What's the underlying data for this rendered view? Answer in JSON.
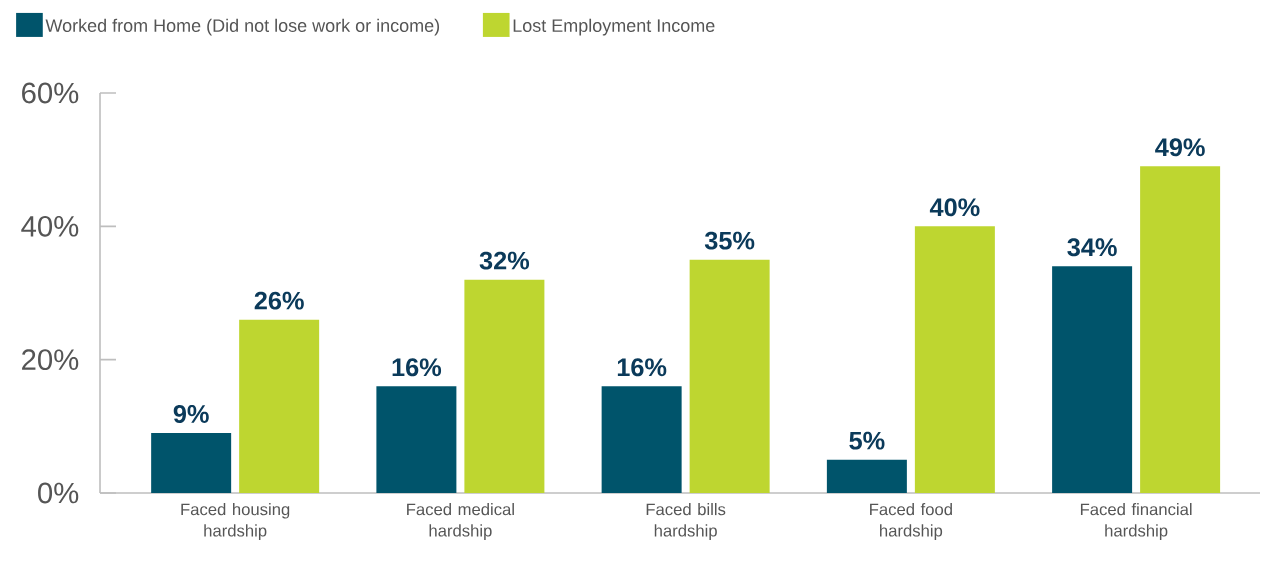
{
  "chart_data": {
    "type": "bar",
    "categories": [
      "Faced housing hardship",
      "Faced medical hardship",
      "Faced bills hardship",
      "Faced food hardship",
      "Faced financial hardship"
    ],
    "series": [
      {
        "name": "Worked from Home (Did not lose work or income)",
        "color": "#00546b",
        "values": [
          9,
          16,
          16,
          5,
          34
        ],
        "value_labels": [
          "9%",
          "16%",
          "16%",
          "5%",
          "34%"
        ]
      },
      {
        "name": "Lost Employment Income",
        "color": "#bed630",
        "values": [
          26,
          32,
          35,
          40,
          49
        ],
        "value_labels": [
          "26%",
          "32%",
          "35%",
          "40%",
          "49%"
        ]
      }
    ],
    "ylim": [
      0,
      60
    ],
    "yticks": [
      {
        "value": 0,
        "label": "0%"
      },
      {
        "value": 20,
        "label": "20%"
      },
      {
        "value": 40,
        "label": "40%"
      },
      {
        "value": 60,
        "label": "60%"
      }
    ],
    "grid": false,
    "legend": "top left"
  }
}
